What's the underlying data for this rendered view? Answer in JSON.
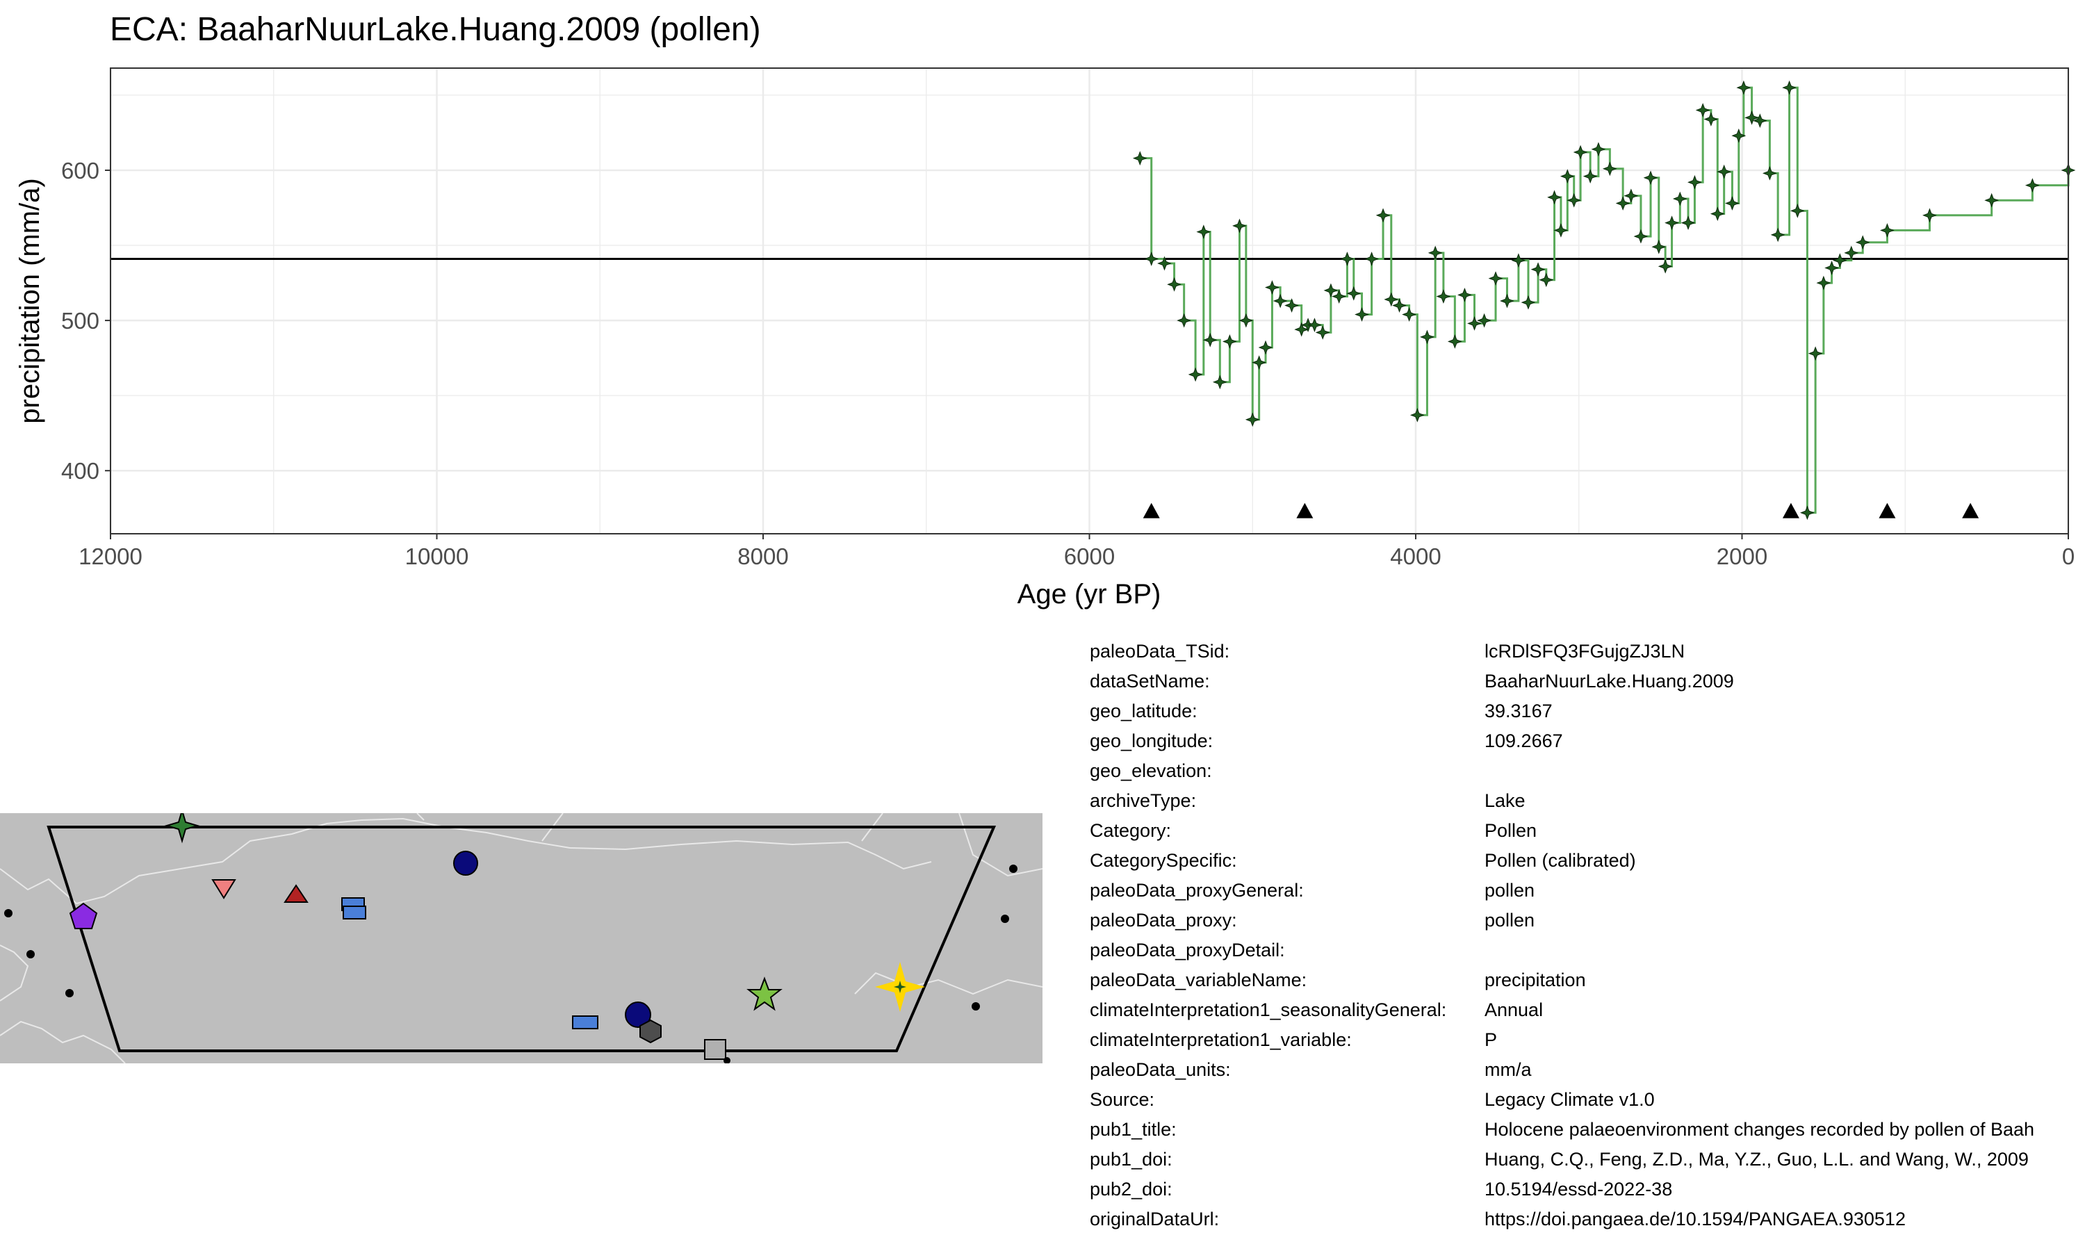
{
  "chart_data": {
    "type": "line",
    "title": "ECA: BaaharNuurLake.Huang.2009 (pollen)",
    "xlabel": "Age (yr BP)",
    "ylabel": "precipitation (mm/a)",
    "xlim": [
      12000,
      0
    ],
    "ylim": [
      358,
      668
    ],
    "x_ticks": [
      12000,
      10000,
      8000,
      6000,
      4000,
      2000,
      0
    ],
    "y_ticks": [
      400,
      500,
      600
    ],
    "grid": true,
    "step": true,
    "reference_line": 541,
    "series": [
      {
        "color": "#5aaa5a",
        "marker_color": "#1e5a1e",
        "x": [
          5690,
          5620,
          5540,
          5480,
          5420,
          5350,
          5300,
          5260,
          5200,
          5140,
          5080,
          5040,
          5000,
          4960,
          4920,
          4880,
          4830,
          4760,
          4700,
          4660,
          4620,
          4570,
          4520,
          4470,
          4420,
          4380,
          4330,
          4270,
          4200,
          4150,
          4100,
          4040,
          3990,
          3930,
          3880,
          3830,
          3760,
          3700,
          3640,
          3580,
          3510,
          3440,
          3370,
          3310,
          3250,
          3200,
          3150,
          3110,
          3070,
          3030,
          2990,
          2930,
          2880,
          2810,
          2730,
          2680,
          2620,
          2560,
          2510,
          2470,
          2430,
          2380,
          2330,
          2290,
          2240,
          2190,
          2150,
          2110,
          2060,
          2020,
          1990,
          1940,
          1890,
          1830,
          1780,
          1710,
          1660,
          1600,
          1550,
          1500,
          1450,
          1400,
          1330,
          1260,
          1110,
          850,
          470,
          220,
          0
        ],
        "y": [
          608,
          541,
          538,
          524,
          500,
          464,
          559,
          487,
          459,
          486,
          563,
          500,
          434,
          472,
          482,
          522,
          513,
          510,
          494,
          497,
          497,
          492,
          520,
          516,
          541,
          518,
          504,
          541,
          570,
          514,
          510,
          504,
          437,
          489,
          545,
          516,
          486,
          517,
          498,
          500,
          528,
          513,
          540,
          512,
          534,
          527,
          582,
          560,
          596,
          580,
          612,
          596,
          614,
          601,
          578,
          583,
          556,
          595,
          549,
          536,
          565,
          581,
          565,
          592,
          640,
          634,
          571,
          599,
          578,
          623,
          655,
          635,
          633,
          598,
          557,
          655,
          573,
          372,
          478,
          525,
          535,
          540,
          545,
          552,
          560,
          570,
          580,
          590,
          600
        ]
      }
    ],
    "age_markers": [
      5620,
      4680,
      1700,
      1110,
      600
    ],
    "marker_y": 373
  },
  "metadata": [
    {
      "key": "paleoData_TSid:",
      "value": "lcRDlSFQ3FGujgZJ3LN"
    },
    {
      "key": "dataSetName:",
      "value": "BaaharNuurLake.Huang.2009"
    },
    {
      "key": "geo_latitude:",
      "value": "39.3167"
    },
    {
      "key": "geo_longitude:",
      "value": "109.2667"
    },
    {
      "key": "geo_elevation:",
      "value": ""
    },
    {
      "key": "archiveType:",
      "value": "Lake"
    },
    {
      "key": "Category:",
      "value": "Pollen"
    },
    {
      "key": "CategorySpecific:",
      "value": "Pollen (calibrated)"
    },
    {
      "key": "paleoData_proxyGeneral:",
      "value": "pollen"
    },
    {
      "key": "paleoData_proxy:",
      "value": "pollen"
    },
    {
      "key": "paleoData_proxyDetail:",
      "value": ""
    },
    {
      "key": "paleoData_variableName:",
      "value": "precipitation"
    },
    {
      "key": "climateInterpretation1_seasonalityGeneral:",
      "value": "Annual"
    },
    {
      "key": "climateInterpretation1_variable:",
      "value": "P"
    },
    {
      "key": "paleoData_units:",
      "value": "mm/a"
    },
    {
      "key": "Source:",
      "value": "Legacy Climate v1.0"
    },
    {
      "key": "pub1_title:",
      "value": "Holocene palaeoenvironment changes recorded by pollen of Baah"
    },
    {
      "key": "pub1_doi:",
      "value": "Huang, C.Q., Feng, Z.D., Ma, Y.Z., Guo, L.L. and Wang, W., 2009"
    },
    {
      "key": "pub2_doi:",
      "value": "10.5194/essd-2022-38"
    },
    {
      "key": "originalDataUrl:",
      "value": "https://doi.pangaea.de/10.1594/PANGAEA.930512"
    }
  ],
  "map": {
    "background_color": "#bebebe",
    "border_color": "#e8e8e8",
    "region_outline_color": "#000000",
    "symbols": [
      {
        "shape": "star4",
        "color": "#2e7d32",
        "name": "green-cross-star-icon"
      },
      {
        "shape": "triangle-down",
        "color": "#f08080",
        "name": "pink-triangle-down-icon"
      },
      {
        "shape": "triangle-up",
        "color": "#b22222",
        "name": "red-triangle-up-icon"
      },
      {
        "shape": "rect-stack",
        "color": "#4a7fd8",
        "name": "blue-rectangles-icon"
      },
      {
        "shape": "circle",
        "color": "#0a0a7a",
        "name": "navy-circle-icon"
      },
      {
        "shape": "pentagon",
        "color": "#8a2be2",
        "name": "purple-pentagon-icon"
      },
      {
        "shape": "star5",
        "color": "#7cc243",
        "name": "lime-star-icon"
      },
      {
        "shape": "star4",
        "color": "#ffd700",
        "name": "yellow-star-site-icon"
      },
      {
        "shape": "rect",
        "color": "#4a7fd8",
        "name": "blue-rectangle-icon"
      },
      {
        "shape": "circle",
        "color": "#0a0a7a",
        "name": "navy-circle-icon-2"
      },
      {
        "shape": "hexagon",
        "color": "#4d4d4d",
        "name": "gray-hexagon-icon"
      },
      {
        "shape": "square",
        "color": "#b0b0b0",
        "name": "gray-square-icon"
      },
      {
        "shape": "dot",
        "color": "#000000",
        "name": "black-dot-icon"
      }
    ]
  }
}
